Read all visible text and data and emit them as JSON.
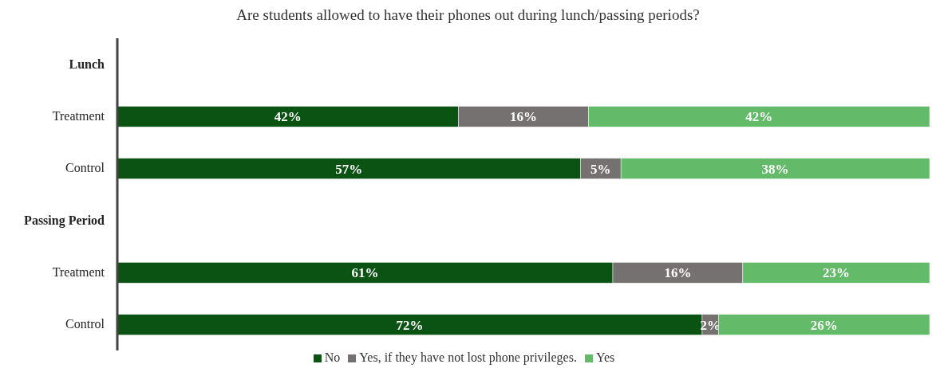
{
  "chart_data": {
    "type": "bar",
    "orientation": "horizontal",
    "stacked": true,
    "title": "Are students allowed to have their phones out during lunch/passing periods?",
    "categories": [
      "Lunch",
      "Treatment",
      "Control",
      "Passing Period",
      "Treatment",
      "Control"
    ],
    "series": [
      {
        "name": "No",
        "color": "#0b5313",
        "values": [
          null,
          42,
          57,
          null,
          61,
          72
        ],
        "value_labels": [
          null,
          "42%",
          "57%",
          null,
          "61%",
          "72%"
        ]
      },
      {
        "name": "Yes, if they have not lost phone privileges.",
        "color": "#767171",
        "values": [
          null,
          16,
          5,
          null,
          16,
          2
        ],
        "value_labels": [
          null,
          "16%",
          "5%",
          null,
          "16%",
          "2%"
        ]
      },
      {
        "name": "Yes",
        "color": "#63ba68",
        "values": [
          null,
          42,
          38,
          null,
          23,
          26
        ],
        "value_labels": [
          null,
          "42%",
          "38%",
          null,
          "23%",
          "26%"
        ]
      }
    ],
    "legend": "bottom",
    "grid": false
  }
}
